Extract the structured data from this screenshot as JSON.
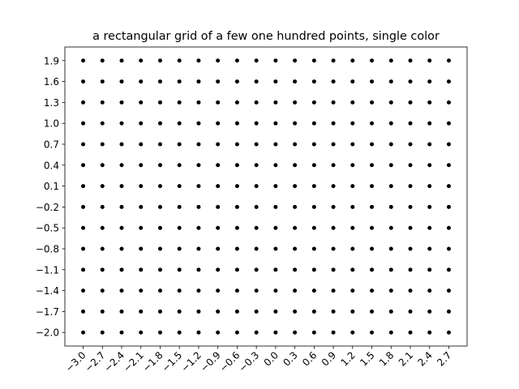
{
  "chart_data": {
    "type": "scatter",
    "title": "a rectangular grid of a few one hundred points, single color",
    "color": "#000000",
    "x": [
      -3,
      -2.7,
      -2.4,
      -2.1,
      -1.8,
      -1.5,
      -1.2,
      -0.9,
      -0.6,
      -0.3,
      0,
      0.3,
      0.6,
      0.9,
      1.2,
      1.5,
      1.8,
      2.1,
      2.4,
      2.7,
      -3,
      -2.7,
      -2.4,
      -2.1,
      -1.8,
      -1.5,
      -1.2,
      -0.9,
      -0.6,
      -0.3,
      0,
      0.3,
      0.6,
      0.9,
      1.2,
      1.5,
      1.8,
      2.1,
      2.4,
      2.7,
      -3,
      -2.7,
      -2.4,
      -2.1,
      -1.8,
      -1.5,
      -1.2,
      -0.9,
      -0.6,
      -0.3,
      0,
      0.3,
      0.6,
      0.9,
      1.2,
      1.5,
      1.8,
      2.1,
      2.4,
      2.7,
      -3,
      -2.7,
      -2.4,
      -2.1,
      -1.8,
      -1.5,
      -1.2,
      -0.9,
      -0.6,
      -0.3,
      0,
      0.3,
      0.6,
      0.9,
      1.2,
      1.5,
      1.8,
      2.1,
      2.4,
      2.7,
      -3,
      -2.7,
      -2.4,
      -2.1,
      -1.8,
      -1.5,
      -1.2,
      -0.9,
      -0.6,
      -0.3,
      0,
      0.3,
      0.6,
      0.9,
      1.2,
      1.5,
      1.8,
      2.1,
      2.4,
      2.7,
      -3,
      -2.7,
      -2.4,
      -2.1,
      -1.8,
      -1.5,
      -1.2,
      -0.9,
      -0.6,
      -0.3,
      0,
      0.3,
      0.6,
      0.9,
      1.2,
      1.5,
      1.8,
      2.1,
      2.4,
      2.7,
      -3,
      -2.7,
      -2.4,
      -2.1,
      -1.8,
      -1.5,
      -1.2,
      -0.9,
      -0.6,
      -0.3,
      0,
      0.3,
      0.6,
      0.9,
      1.2,
      1.5,
      1.8,
      2.1,
      2.4,
      2.7,
      -3,
      -2.7,
      -2.4,
      -2.1,
      -1.8,
      -1.5,
      -1.2,
      -0.9,
      -0.6,
      -0.3,
      0,
      0.3,
      0.6,
      0.9,
      1.2,
      1.5,
      1.8,
      2.1,
      2.4,
      2.7,
      -3,
      -2.7,
      -2.4,
      -2.1,
      -1.8,
      -1.5,
      -1.2,
      -0.9,
      -0.6,
      -0.3,
      0,
      0.3,
      0.6,
      0.9,
      1.2,
      1.5,
      1.8,
      2.1,
      2.4,
      2.7,
      -3,
      -2.7,
      -2.4,
      -2.1,
      -1.8,
      -1.5,
      -1.2,
      -0.9,
      -0.6,
      -0.3,
      0,
      0.3,
      0.6,
      0.9,
      1.2,
      1.5,
      1.8,
      2.1,
      2.4,
      2.7,
      -3,
      -2.7,
      -2.4,
      -2.1,
      -1.8,
      -1.5,
      -1.2,
      -0.9,
      -0.6,
      -0.3,
      0,
      0.3,
      0.6,
      0.9,
      1.2,
      1.5,
      1.8,
      2.1,
      2.4,
      2.7,
      -3,
      -2.7,
      -2.4,
      -2.1,
      -1.8,
      -1.5,
      -1.2,
      -0.9,
      -0.6,
      -0.3,
      0,
      0.3,
      0.6,
      0.9,
      1.2,
      1.5,
      1.8,
      2.1,
      2.4,
      2.7,
      -3,
      -2.7,
      -2.4,
      -2.1,
      -1.8,
      -1.5,
      -1.2,
      -0.9,
      -0.6,
      -0.3,
      0,
      0.3,
      0.6,
      0.9,
      1.2,
      1.5,
      1.8,
      2.1,
      2.4,
      2.7,
      -3,
      -2.7,
      -2.4,
      -2.1,
      -1.8,
      -1.5,
      -1.2,
      -0.9,
      -0.6,
      -0.3,
      0,
      0.3,
      0.6,
      0.9,
      1.2,
      1.5,
      1.8,
      2.1,
      2.4,
      2.7
    ],
    "values": [
      -2,
      -2,
      -2,
      -2,
      -2,
      -2,
      -2,
      -2,
      -2,
      -2,
      -2,
      -2,
      -2,
      -2,
      -2,
      -2,
      -2,
      -2,
      -2,
      -2,
      -1.7,
      -1.7,
      -1.7,
      -1.7,
      -1.7,
      -1.7,
      -1.7,
      -1.7,
      -1.7,
      -1.7,
      -1.7,
      -1.7,
      -1.7,
      -1.7,
      -1.7,
      -1.7,
      -1.7,
      -1.7,
      -1.7,
      -1.7,
      -1.4,
      -1.4,
      -1.4,
      -1.4,
      -1.4,
      -1.4,
      -1.4,
      -1.4,
      -1.4,
      -1.4,
      -1.4,
      -1.4,
      -1.4,
      -1.4,
      -1.4,
      -1.4,
      -1.4,
      -1.4,
      -1.4,
      -1.4,
      -1.1,
      -1.1,
      -1.1,
      -1.1,
      -1.1,
      -1.1,
      -1.1,
      -1.1,
      -1.1,
      -1.1,
      -1.1,
      -1.1,
      -1.1,
      -1.1,
      -1.1,
      -1.1,
      -1.1,
      -1.1,
      -1.1,
      -1.1,
      -0.8,
      -0.8,
      -0.8,
      -0.8,
      -0.8,
      -0.8,
      -0.8,
      -0.8,
      -0.8,
      -0.8,
      -0.8,
      -0.8,
      -0.8,
      -0.8,
      -0.8,
      -0.8,
      -0.8,
      -0.8,
      -0.8,
      -0.8,
      -0.5,
      -0.5,
      -0.5,
      -0.5,
      -0.5,
      -0.5,
      -0.5,
      -0.5,
      -0.5,
      -0.5,
      -0.5,
      -0.5,
      -0.5,
      -0.5,
      -0.5,
      -0.5,
      -0.5,
      -0.5,
      -0.5,
      -0.5,
      -0.2,
      -0.2,
      -0.2,
      -0.2,
      -0.2,
      -0.2,
      -0.2,
      -0.2,
      -0.2,
      -0.2,
      -0.2,
      -0.2,
      -0.2,
      -0.2,
      -0.2,
      -0.2,
      -0.2,
      -0.2,
      -0.2,
      -0.2,
      0.1,
      0.1,
      0.1,
      0.1,
      0.1,
      0.1,
      0.1,
      0.1,
      0.1,
      0.1,
      0.1,
      0.1,
      0.1,
      0.1,
      0.1,
      0.1,
      0.1,
      0.1,
      0.1,
      0.1,
      0.4,
      0.4,
      0.4,
      0.4,
      0.4,
      0.4,
      0.4,
      0.4,
      0.4,
      0.4,
      0.4,
      0.4,
      0.4,
      0.4,
      0.4,
      0.4,
      0.4,
      0.4,
      0.4,
      0.4,
      0.7,
      0.7,
      0.7,
      0.7,
      0.7,
      0.7,
      0.7,
      0.7,
      0.7,
      0.7,
      0.7,
      0.7,
      0.7,
      0.7,
      0.7,
      0.7,
      0.7,
      0.7,
      0.7,
      0.7,
      1,
      1,
      1,
      1,
      1,
      1,
      1,
      1,
      1,
      1,
      1,
      1,
      1,
      1,
      1,
      1,
      1,
      1,
      1,
      1,
      1.3,
      1.3,
      1.3,
      1.3,
      1.3,
      1.3,
      1.3,
      1.3,
      1.3,
      1.3,
      1.3,
      1.3,
      1.3,
      1.3,
      1.3,
      1.3,
      1.3,
      1.3,
      1.3,
      1.3,
      1.6,
      1.6,
      1.6,
      1.6,
      1.6,
      1.6,
      1.6,
      1.6,
      1.6,
      1.6,
      1.6,
      1.6,
      1.6,
      1.6,
      1.6,
      1.6,
      1.6,
      1.6,
      1.6,
      1.6,
      1.9,
      1.9,
      1.9,
      1.9,
      1.9,
      1.9,
      1.9,
      1.9,
      1.9,
      1.9,
      1.9,
      1.9,
      1.9,
      1.9,
      1.9,
      1.9,
      1.9,
      1.9,
      1.9,
      1.9
    ],
    "xlim": [
      -3.285,
      2.985
    ],
    "ylim": [
      -2.195,
      2.095
    ],
    "xticks": [
      {
        "value": -3,
        "label": "−3.0"
      },
      {
        "value": -2.7,
        "label": "−2.7"
      },
      {
        "value": -2.4,
        "label": "−2.4"
      },
      {
        "value": -2.1,
        "label": "−2.1"
      },
      {
        "value": -1.8,
        "label": "−1.8"
      },
      {
        "value": -1.5,
        "label": "−1.5"
      },
      {
        "value": -1.2,
        "label": "−1.2"
      },
      {
        "value": -0.9,
        "label": "−0.9"
      },
      {
        "value": -0.6,
        "label": "−0.6"
      },
      {
        "value": -0.3,
        "label": "−0.3"
      },
      {
        "value": 0,
        "label": "0.0"
      },
      0.3,
      0.6,
      0.9,
      1.2,
      1.5,
      1.8,
      2.1,
      2.4,
      2.7
    ],
    "yticks": [
      {
        "value": -2,
        "label": "−2.0"
      },
      {
        "value": -1.7,
        "label": "−1.7"
      },
      {
        "value": -1.4,
        "label": "−1.4"
      },
      {
        "value": -1.1,
        "label": "−1.1"
      },
      {
        "value": -0.8,
        "label": "−0.8"
      },
      {
        "value": -0.5,
        "label": "−0.5"
      },
      {
        "value": -0.2,
        "label": "−0.2"
      },
      0.1,
      0.4,
      0.7,
      {
        "value": 1,
        "label": "1.0"
      },
      1.3,
      1.6,
      1.9
    ],
    "grid": false
  }
}
